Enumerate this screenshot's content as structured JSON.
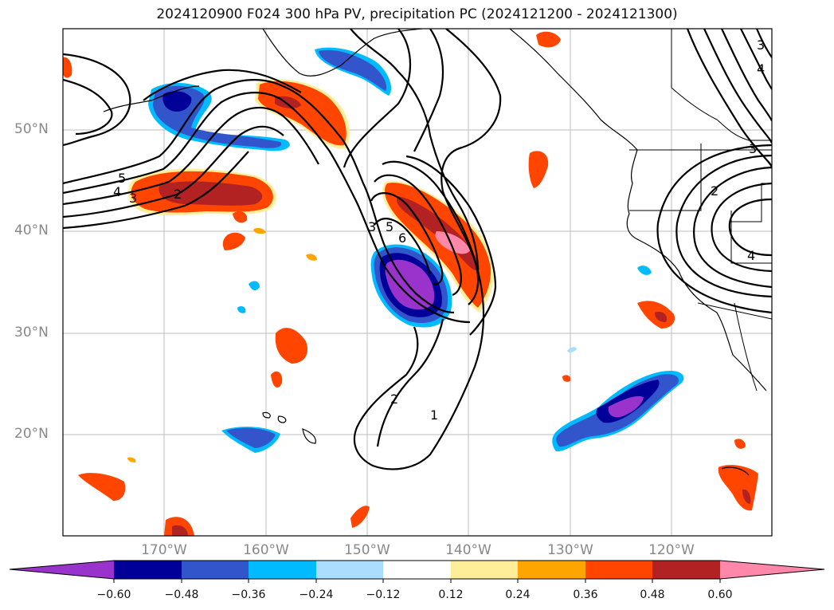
{
  "title": "2024120900 F024 300 hPa PV, precipitation PC (2024121200 - 2024121300)",
  "lat_labels": [
    "50°N",
    "40°N",
    "30°N",
    "20°N"
  ],
  "lon_labels": [
    "170°W",
    "160°W",
    "150°W",
    "140°W",
    "130°W",
    "120°W"
  ],
  "colorbar": {
    "tick_labels": [
      "−0.60",
      "−0.48",
      "−0.36",
      "−0.24",
      "−0.12",
      "0.12",
      "0.24",
      "0.36",
      "0.48",
      "0.60"
    ],
    "colors": [
      "#9933cc",
      "#000099",
      "#3355cc",
      "#00bbff",
      "#aaddff",
      "#ffffff",
      "#ffee99",
      "#ffa500",
      "#ff4500",
      "#b22222",
      "#ff88aa"
    ]
  },
  "contour_labels": {
    "w5": "5",
    "w4": "4",
    "w3": "3",
    "w2": "2",
    "c3": "3",
    "c5": "5",
    "c6": "6",
    "c2": "2",
    "c1": "1",
    "e3a": "3",
    "e2": "2",
    "e4a": "4",
    "e4b": "4",
    "e3b": "3"
  }
}
